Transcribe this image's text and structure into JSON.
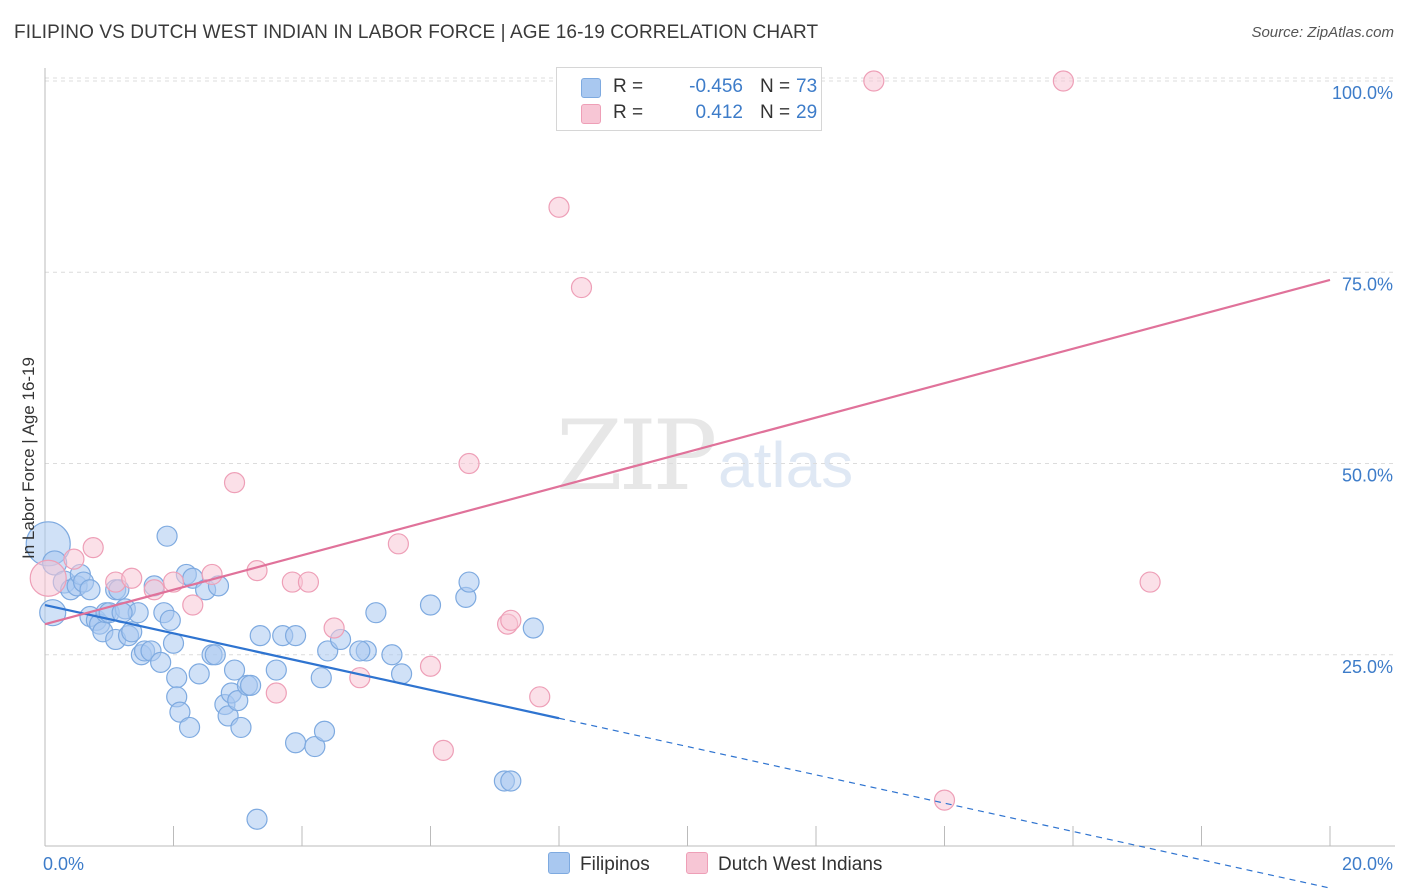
{
  "title": "FILIPINO VS DUTCH WEST INDIAN IN LABOR FORCE | AGE 16-19 CORRELATION CHART",
  "source": "Source: ZipAtlas.com",
  "watermark": {
    "zip": "ZIP",
    "atlas": "atlas"
  },
  "legend": {
    "rows": [
      {
        "r_label": "R =",
        "r_value": "-0.456",
        "n_label": "N =",
        "n_value": "73",
        "color": "#a9c8f0",
        "border": "#7eaae0"
      },
      {
        "r_label": "R =",
        "r_value": "0.412",
        "n_label": "N =",
        "n_value": "29",
        "color": "#f7c6d5",
        "border": "#ee9fb7"
      }
    ]
  },
  "bottom_legend": {
    "filipinos": "Filipinos",
    "dutch": "Dutch West Indians"
  },
  "chart_data": {
    "type": "scatter",
    "xlabel": "",
    "ylabel": "In Labor Force | Age 16-19",
    "xlim": [
      0,
      20
    ],
    "ylim": [
      0,
      100
    ],
    "x_ticks": [
      {
        "value": 0,
        "label": "0.0%"
      },
      {
        "value": 20,
        "label": "20.0%"
      }
    ],
    "y_ticks": [
      {
        "value": 25,
        "label": "25.0%"
      },
      {
        "value": 50,
        "label": "50.0%"
      },
      {
        "value": 75,
        "label": "75.0%"
      },
      {
        "value": 100,
        "label": "100.0%"
      }
    ],
    "series": [
      {
        "name": "Filipinos",
        "color": "#a9c8f0",
        "stroke": "#7eaae0",
        "line_color": "#2f74d0",
        "trend": {
          "x0": 0,
          "y0": 31.5,
          "x1": 8.0,
          "y1": 16.7,
          "dash_to_x": 20,
          "dash_to_y": -5.5
        },
        "points": [
          [
            0.05,
            39.5,
            22
          ],
          [
            0.15,
            37,
            12
          ],
          [
            0.12,
            30.5,
            13
          ],
          [
            0.3,
            34.5,
            11
          ],
          [
            0.4,
            33.5,
            10
          ],
          [
            0.5,
            34,
            10
          ],
          [
            0.55,
            35.5,
            10
          ],
          [
            0.6,
            34.5,
            10
          ],
          [
            0.7,
            30,
            10
          ],
          [
            0.7,
            33.5,
            10
          ],
          [
            0.8,
            29.5,
            10
          ],
          [
            0.85,
            29,
            10
          ],
          [
            0.9,
            28,
            10
          ],
          [
            0.95,
            30.5,
            10
          ],
          [
            1.0,
            30.5,
            10
          ],
          [
            1.1,
            33.5,
            10
          ],
          [
            1.1,
            27,
            10
          ],
          [
            1.15,
            33.5,
            10
          ],
          [
            1.25,
            31,
            10
          ],
          [
            1.3,
            27.5,
            10
          ],
          [
            1.35,
            28,
            10
          ],
          [
            1.45,
            30.5,
            10
          ],
          [
            1.5,
            25,
            10
          ],
          [
            1.55,
            25.5,
            10
          ],
          [
            1.65,
            25.5,
            10
          ],
          [
            1.7,
            34,
            10
          ],
          [
            1.8,
            24,
            10
          ],
          [
            1.85,
            30.5,
            10
          ],
          [
            1.95,
            29.5,
            10
          ],
          [
            1.9,
            40.5,
            10
          ],
          [
            2.0,
            26.5,
            10
          ],
          [
            2.05,
            22,
            10
          ],
          [
            2.05,
            19.5,
            10
          ],
          [
            2.1,
            17.5,
            10
          ],
          [
            2.2,
            35.5,
            10
          ],
          [
            2.25,
            15.5,
            10
          ],
          [
            2.3,
            35,
            10
          ],
          [
            2.4,
            22.5,
            10
          ],
          [
            2.5,
            33.5,
            10
          ],
          [
            2.6,
            25,
            10
          ],
          [
            2.65,
            25,
            10
          ],
          [
            2.7,
            34,
            10
          ],
          [
            2.8,
            18.5,
            10
          ],
          [
            2.85,
            17,
            10
          ],
          [
            2.9,
            20,
            10
          ],
          [
            2.95,
            23,
            10
          ],
          [
            3.0,
            19,
            10
          ],
          [
            3.05,
            15.5,
            10
          ],
          [
            3.15,
            21,
            10
          ],
          [
            3.2,
            21,
            10
          ],
          [
            3.3,
            3.5,
            10
          ],
          [
            3.35,
            27.5,
            10
          ],
          [
            3.6,
            23,
            10
          ],
          [
            3.7,
            27.5,
            10
          ],
          [
            3.9,
            27.5,
            10
          ],
          [
            3.9,
            13.5,
            10
          ],
          [
            4.2,
            13,
            10
          ],
          [
            4.3,
            22,
            10
          ],
          [
            4.35,
            15,
            10
          ],
          [
            4.4,
            25.5,
            10
          ],
          [
            4.6,
            27,
            10
          ],
          [
            5.0,
            25.5,
            10
          ],
          [
            5.15,
            30.5,
            10
          ],
          [
            5.4,
            25,
            10
          ],
          [
            5.55,
            22.5,
            10
          ],
          [
            6.0,
            31.5,
            10
          ],
          [
            6.55,
            32.5,
            10
          ],
          [
            6.6,
            34.5,
            10
          ],
          [
            7.15,
            8.5,
            10
          ],
          [
            7.25,
            8.5,
            10
          ],
          [
            7.6,
            28.5,
            10
          ],
          [
            4.9,
            25.5,
            10
          ],
          [
            1.2,
            30.5,
            10
          ]
        ]
      },
      {
        "name": "Dutch West Indians",
        "color": "#f7c6d5",
        "stroke": "#ee9fb7",
        "line_color": "#e0729a",
        "trend": {
          "x0": 0,
          "y0": 29.0,
          "x1": 20,
          "y1": 74.0
        },
        "points": [
          [
            0.05,
            35,
            18
          ],
          [
            0.45,
            37.5,
            10
          ],
          [
            0.75,
            39,
            10
          ],
          [
            1.1,
            34.5,
            10
          ],
          [
            1.35,
            35,
            10
          ],
          [
            1.7,
            33.5,
            10
          ],
          [
            2.0,
            34.5,
            10
          ],
          [
            2.3,
            31.5,
            10
          ],
          [
            2.6,
            35.5,
            10
          ],
          [
            2.95,
            47.5,
            10
          ],
          [
            3.3,
            36,
            10
          ],
          [
            3.6,
            20,
            10
          ],
          [
            3.85,
            34.5,
            10
          ],
          [
            4.1,
            34.5,
            10
          ],
          [
            4.5,
            28.5,
            10
          ],
          [
            4.9,
            22,
            10
          ],
          [
            5.5,
            39.5,
            10
          ],
          [
            6.0,
            23.5,
            10
          ],
          [
            6.2,
            12.5,
            10
          ],
          [
            6.6,
            50,
            10
          ],
          [
            7.2,
            29,
            10
          ],
          [
            7.7,
            19.5,
            10
          ],
          [
            8.0,
            83.5,
            10
          ],
          [
            8.35,
            73,
            10
          ],
          [
            12.9,
            100,
            10
          ],
          [
            14.0,
            6,
            10
          ],
          [
            15.85,
            100,
            10
          ],
          [
            17.2,
            34.5,
            10
          ],
          [
            7.25,
            29.5,
            10
          ]
        ]
      }
    ]
  }
}
